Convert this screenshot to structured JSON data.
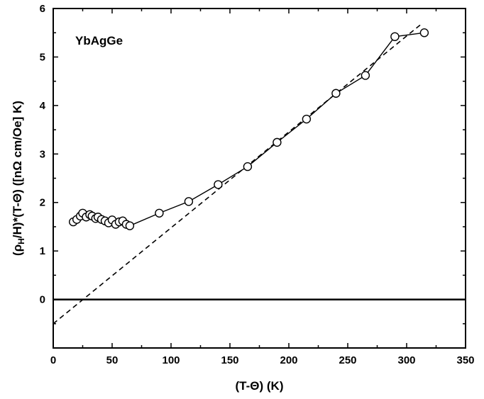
{
  "chart_data": {
    "type": "scatter",
    "xlabel": "(T-Θ) (K)",
    "ylabel": "(ρH/H)*(T-Θ) ([nΩ cm/Oe] K)",
    "ylabel_parts": {
      "open": "(ρ",
      "sub": "H",
      "rest": "/H)*(T-Θ) ([nΩ cm/Oe] K)"
    },
    "annotation": "YbAgGe",
    "xlim": [
      0,
      350
    ],
    "ylim": [
      -1,
      6
    ],
    "x_ticks": [
      0,
      50,
      100,
      150,
      200,
      250,
      300,
      350
    ],
    "y_ticks": [
      0,
      1,
      2,
      3,
      4,
      5,
      6
    ],
    "x_tick_labels": [
      "0",
      "50",
      "100",
      "150",
      "200",
      "250",
      "300",
      "350"
    ],
    "y_tick_labels": [
      "0",
      "1",
      "2",
      "3",
      "4",
      "5",
      "6"
    ],
    "grid": false,
    "series": [
      {
        "marker": "open-circle",
        "line": "solid",
        "x": [
          17,
          20,
          23,
          25,
          28,
          31,
          33,
          36,
          38,
          41,
          44,
          47,
          50,
          53,
          56,
          59,
          62,
          65,
          90,
          115,
          140,
          165,
          190,
          215,
          240,
          265,
          290,
          315
        ],
        "y": [
          1.6,
          1.65,
          1.72,
          1.78,
          1.7,
          1.75,
          1.72,
          1.67,
          1.7,
          1.65,
          1.62,
          1.58,
          1.64,
          1.55,
          1.6,
          1.62,
          1.55,
          1.52,
          1.78,
          2.02,
          2.37,
          2.74,
          3.24,
          3.72,
          4.25,
          4.62,
          5.42,
          5.5
        ]
      }
    ],
    "fit_line": {
      "style": "dashed",
      "x": [
        0,
        312
      ],
      "y": [
        -0.5,
        5.67
      ]
    },
    "reference_line": {
      "y": 0,
      "style": "solid"
    }
  }
}
